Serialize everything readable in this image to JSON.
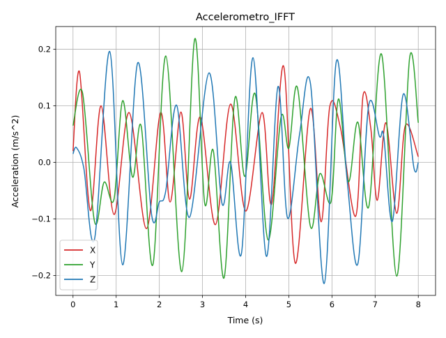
{
  "chart_data": {
    "type": "line",
    "title": "Accelerometro_IFFT",
    "xlabel": "Time (s)",
    "ylabel": "Acceleration (m/s^2)",
    "xlim": [
      -0.4,
      8.4
    ],
    "ylim": [
      -0.235,
      0.24
    ],
    "xticks": [
      0,
      1,
      2,
      3,
      4,
      5,
      6,
      7,
      8
    ],
    "xtick_labels": [
      "0",
      "1",
      "2",
      "3",
      "4",
      "5",
      "6",
      "7",
      "8"
    ],
    "yticks": [
      -0.2,
      -0.1,
      0.0,
      0.1,
      0.2
    ],
    "ytick_labels": [
      "−0.2",
      "−0.1",
      "0.0",
      "0.1",
      "0.2"
    ],
    "grid": true,
    "legend_position": "lower left",
    "series": [
      {
        "name": "X",
        "color": "#d62728",
        "x": [
          0.0,
          0.15,
          0.4,
          0.65,
          0.95,
          1.3,
          1.7,
          2.03,
          2.25,
          2.5,
          2.7,
          2.95,
          3.3,
          3.65,
          4.0,
          4.38,
          4.6,
          4.88,
          5.15,
          5.5,
          5.75,
          5.95,
          6.2,
          6.55,
          6.72,
          6.9,
          7.05,
          7.25,
          7.5,
          7.7,
          8.0
        ],
        "y": [
          0.02,
          0.16,
          -0.085,
          0.1,
          -0.092,
          0.088,
          -0.117,
          0.088,
          -0.07,
          0.089,
          -0.065,
          0.08,
          -0.11,
          0.103,
          -0.086,
          0.088,
          -0.074,
          0.17,
          -0.178,
          0.095,
          -0.105,
          0.099,
          0.06,
          -0.095,
          0.118,
          0.06,
          -0.067,
          0.07,
          -0.09,
          0.065,
          0.01
        ]
      },
      {
        "name": "Y",
        "color": "#2ca02c",
        "x": [
          0.0,
          0.22,
          0.5,
          0.72,
          0.95,
          1.15,
          1.38,
          1.58,
          1.85,
          2.15,
          2.52,
          2.82,
          3.05,
          3.25,
          3.5,
          3.75,
          3.98,
          4.22,
          4.52,
          4.82,
          5.0,
          5.2,
          5.5,
          5.72,
          5.98,
          6.15,
          6.38,
          6.6,
          6.85,
          7.15,
          7.5,
          7.8,
          8.0
        ],
        "y": [
          0.065,
          0.123,
          -0.105,
          -0.035,
          -0.065,
          0.109,
          -0.026,
          0.064,
          -0.181,
          0.188,
          -0.193,
          0.218,
          -0.072,
          0.021,
          -0.204,
          0.113,
          -0.025,
          0.121,
          -0.137,
          0.08,
          0.025,
          0.132,
          -0.113,
          -0.02,
          -0.069,
          0.112,
          -0.034,
          0.071,
          -0.079,
          0.191,
          -0.201,
          0.185,
          0.07
        ]
      },
      {
        "name": "Z",
        "color": "#1f77b4",
        "x": [
          0.0,
          0.08,
          0.25,
          0.5,
          0.85,
          1.15,
          1.5,
          1.82,
          2.0,
          2.15,
          2.4,
          2.7,
          3.15,
          3.45,
          3.65,
          3.9,
          4.17,
          4.48,
          4.75,
          4.97,
          5.25,
          5.5,
          5.82,
          6.1,
          6.35,
          6.6,
          6.85,
          7.1,
          7.2,
          7.4,
          7.65,
          7.9,
          8.0
        ],
        "y": [
          0.015,
          0.026,
          -0.01,
          -0.135,
          0.196,
          -0.181,
          0.176,
          -0.092,
          -0.07,
          -0.05,
          0.101,
          -0.097,
          0.158,
          -0.072,
          0.0,
          -0.162,
          0.185,
          -0.166,
          0.134,
          -0.098,
          0.05,
          0.14,
          -0.214,
          0.178,
          -0.03,
          -0.179,
          0.1,
          0.046,
          0.046,
          -0.104,
          0.12,
          -0.01,
          0.0
        ]
      }
    ]
  }
}
